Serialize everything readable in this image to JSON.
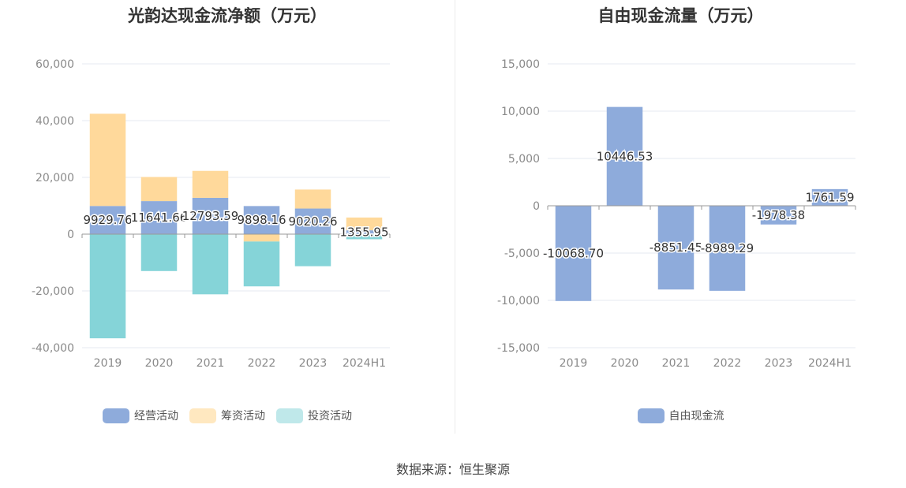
{
  "source_text": "数据来源：恒生聚源",
  "colors": {
    "operating": "#8eabdb",
    "financing": "#ffd99b",
    "investing": "#85d4d8",
    "free_cash_flow": "#8eabdb",
    "legend_operating": "#8eabdb",
    "legend_financing": "#ffe8c0",
    "legend_investing": "#bfe8ea"
  },
  "chart_data": [
    {
      "type": "bar",
      "stacked": true,
      "title": "光韵达现金流净额（万元）",
      "categories": [
        "2019",
        "2020",
        "2021",
        "2022",
        "2023",
        "2024H1"
      ],
      "ylim": [
        -40000,
        60000
      ],
      "yticks": [
        60000,
        40000,
        20000,
        0,
        -20000,
        -40000
      ],
      "ytick_labels": [
        "60,000",
        "40,000",
        "20,000",
        "0",
        "-20,000",
        "-40,000"
      ],
      "grid": true,
      "legend_position": "bottom",
      "series": [
        {
          "name": "经营活动",
          "values": [
            9929.76,
            11641.66,
            12793.59,
            9898.16,
            9020.26,
            1355.95
          ]
        },
        {
          "name": "筹资活动",
          "values": [
            32500,
            8500,
            9500,
            -2600,
            6700,
            4500
          ]
        },
        {
          "name": "投资活动",
          "values": [
            -36700,
            -13000,
            -21200,
            -15800,
            -11300,
            -1800
          ]
        }
      ],
      "data_labels": [
        "9929.76",
        "11641.66",
        "12793.59",
        "9898.16",
        "9020.26",
        "1355.95"
      ]
    },
    {
      "type": "bar",
      "title": "自由现金流量（万元）",
      "categories": [
        "2019",
        "2020",
        "2021",
        "2022",
        "2023",
        "2024H1"
      ],
      "ylim": [
        -15000,
        15000
      ],
      "yticks": [
        15000,
        10000,
        5000,
        0,
        -5000,
        -10000,
        -15000
      ],
      "ytick_labels": [
        "15,000",
        "10,000",
        "5,000",
        "0",
        "-5,000",
        "-10,000",
        "-15,000"
      ],
      "grid": true,
      "legend_position": "bottom",
      "series": [
        {
          "name": "自由现金流",
          "values": [
            -10068.7,
            10446.53,
            -8851.45,
            -8989.29,
            -1978.38,
            1761.59
          ]
        }
      ],
      "data_labels": [
        "-10068.70",
        "10446.53",
        "-8851.45",
        "-8989.29",
        "-1978.38",
        "1761.59"
      ]
    }
  ]
}
